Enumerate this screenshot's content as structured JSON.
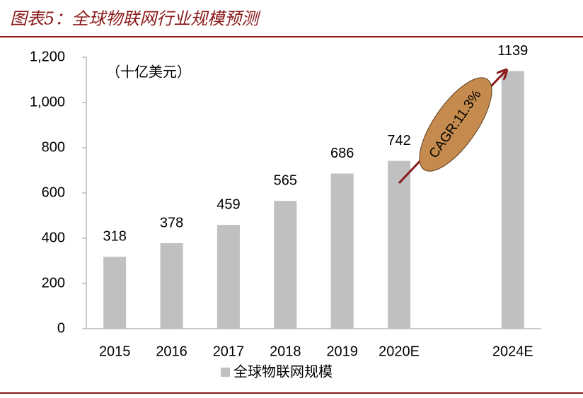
{
  "chart_data": {
    "type": "bar",
    "title": "图表5：全球物联网行业规模预测",
    "annotations": {
      "unit": "（十亿美元）",
      "cagr": "CAGR:11.3%"
    },
    "categories": [
      "2015",
      "2016",
      "2017",
      "2018",
      "2019",
      "2020E",
      null,
      "2024E"
    ],
    "series": [
      {
        "name": "全球物联网规模",
        "color": "#c0c0c0",
        "values": [
          318,
          378,
          459,
          565,
          686,
          742,
          null,
          1139
        ]
      }
    ],
    "ylim": [
      0,
      1200
    ],
    "yticks": [
      0,
      200,
      400,
      600,
      800,
      {
        "value": 1000,
        "label": "1,000"
      },
      {
        "value": 1200,
        "label": "1,200"
      }
    ],
    "grid": false
  }
}
